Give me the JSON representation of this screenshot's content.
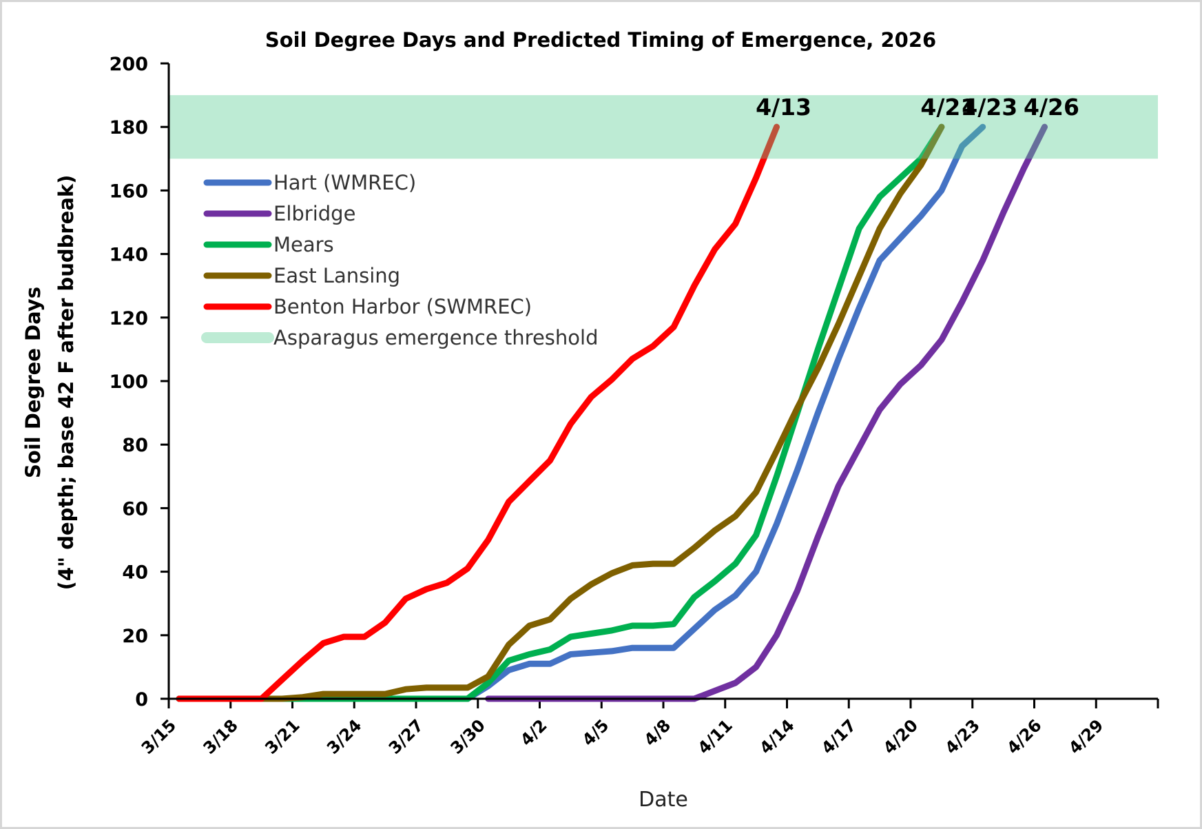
{
  "chart_data": {
    "type": "line",
    "title": "Soil Degree Days and Predicted Timing of Emergence, 2026",
    "xlabel": "Date",
    "ylabel": [
      "Soil Degree Days",
      "(4\" depth; base 42 F after budbreak)"
    ],
    "ylim": [
      0,
      200
    ],
    "yticks": [
      "0",
      "20",
      "40",
      "60",
      "80",
      "100",
      "120",
      "140",
      "160",
      "180",
      "200"
    ],
    "xlim": [
      "3/15",
      "5/2"
    ],
    "xticks": [
      "3/15",
      "3/18",
      "3/21",
      "3/24",
      "3/27",
      "3/30",
      "4/2",
      "4/5",
      "4/8",
      "4/11",
      "4/14",
      "4/17",
      "4/20",
      "4/23",
      "4/26",
      "4/29"
    ],
    "grid": false,
    "legend_position": "upper-left",
    "x": [
      "3/15",
      "3/16",
      "3/17",
      "3/18",
      "3/19",
      "3/20",
      "3/21",
      "3/22",
      "3/23",
      "3/24",
      "3/25",
      "3/26",
      "3/27",
      "3/28",
      "3/29",
      "3/30",
      "3/31",
      "4/1",
      "4/2",
      "4/3",
      "4/4",
      "4/5",
      "4/6",
      "4/7",
      "4/8",
      "4/9",
      "4/10",
      "4/11",
      "4/12",
      "4/13",
      "4/14",
      "4/15",
      "4/16",
      "4/17",
      "4/18",
      "4/19",
      "4/20",
      "4/21",
      "4/22",
      "4/23",
      "4/24",
      "4/25",
      "4/26"
    ],
    "series": [
      {
        "name": "Hart (WMREC)",
        "color": "#4472C4",
        "values": [
          0,
          0,
          0,
          0,
          0,
          0,
          0,
          0,
          0,
          0,
          0,
          0,
          0,
          0,
          0,
          4,
          9,
          11,
          11,
          14,
          14.5,
          15,
          16,
          16,
          16,
          22,
          28,
          32.5,
          40,
          55,
          72,
          90,
          107,
          123,
          138,
          145,
          152,
          160,
          174,
          180,
          null,
          null,
          null
        ]
      },
      {
        "name": "Elbridge",
        "color": "#7030A0",
        "values": [
          null,
          null,
          null,
          null,
          null,
          null,
          null,
          null,
          null,
          null,
          null,
          null,
          null,
          null,
          null,
          0,
          0,
          0,
          0,
          0,
          0,
          0,
          0,
          0,
          0,
          0,
          2.5,
          5,
          10,
          20,
          34,
          51,
          67,
          79,
          91,
          99,
          105,
          113,
          125,
          138,
          153,
          167,
          180
        ]
      },
      {
        "name": "Mears",
        "color": "#00B050",
        "values": [
          0,
          0,
          0,
          0,
          0,
          0,
          0,
          0,
          0,
          0,
          0,
          0,
          0,
          0,
          0,
          5,
          12,
          14,
          15.5,
          19.5,
          20.5,
          21.5,
          23,
          23,
          23.5,
          32,
          37,
          42.5,
          51.5,
          70,
          90,
          110,
          129,
          148,
          158,
          164,
          170,
          180,
          null,
          null,
          null,
          null,
          null
        ]
      },
      {
        "name": "East Lansing",
        "color": "#7F6000",
        "values": [
          0,
          0,
          0,
          0,
          0,
          0,
          0.5,
          1.5,
          1.5,
          1.5,
          1.5,
          3,
          3.5,
          3.5,
          3.5,
          7,
          17,
          23,
          25,
          31.5,
          36,
          39.5,
          42,
          42.5,
          42.5,
          47.5,
          53,
          57.5,
          65,
          78,
          91.5,
          104,
          118,
          133,
          148,
          159,
          168,
          180,
          null,
          null,
          null,
          null,
          null
        ]
      },
      {
        "name": "Benton Harbor (SWMREC)",
        "color": "#FF0000",
        "values": [
          0,
          0,
          0,
          0,
          0,
          6,
          12,
          17.5,
          19.5,
          19.5,
          24,
          31.5,
          34.5,
          36.5,
          41,
          50,
          62,
          68.5,
          75,
          86.5,
          95,
          100.5,
          107,
          111,
          117,
          130,
          141.5,
          149.5,
          164,
          180,
          null,
          null,
          null,
          null,
          null,
          null,
          null,
          null,
          null,
          null,
          null,
          null,
          null
        ]
      }
    ],
    "threshold_band": {
      "name": "Asparagus emergence threshold",
      "range": [
        170,
        190
      ],
      "color": "#BDEBD4"
    },
    "annotations": [
      {
        "label": "4/13",
        "series": "Benton Harbor (SWMREC)"
      },
      {
        "label": "4/21",
        "series": "East Lansing"
      },
      {
        "label": "4/23",
        "series": "Hart (WMREC)"
      },
      {
        "label": "4/26",
        "series": "Elbridge"
      }
    ]
  }
}
